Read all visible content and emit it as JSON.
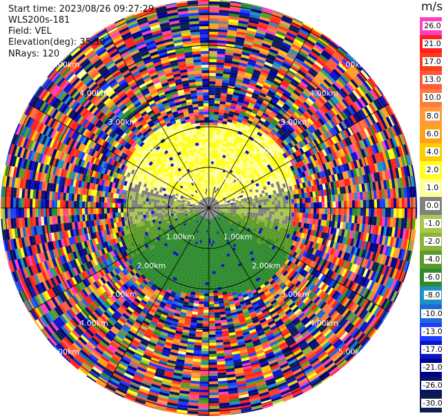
{
  "header": {
    "start_time": "Start time: 2023/08/26 09:27:29",
    "instrument": "WLS200s-181",
    "field": "Field: VEL",
    "elevation": "Elevation(deg): 35.30",
    "nrays": "NRays: 120"
  },
  "colorbar": {
    "unit": "m/s",
    "ticks": [
      "26.0",
      "21.0",
      "17.0",
      "13.0",
      "10.0",
      "8.0",
      "6.0",
      "4.0",
      "2.0",
      "1.0",
      "0.0",
      "-1.0",
      "-2.0",
      "-4.0",
      "-6.0",
      "-8.0",
      "-10.0",
      "-13.0",
      "-17.0",
      "-21.0",
      "-26.0",
      "-30.0"
    ],
    "colors": [
      "#ff3fbf",
      "#ff1f1f",
      "#ff3b1a",
      "#ff5a3c",
      "#ff7a3c",
      "#ff9a3c",
      "#ffa21a",
      "#ffcc00",
      "#ffff1a",
      "#ffff99",
      "#808080",
      "#a8c84a",
      "#8cb43a",
      "#5a9a28",
      "#2d8a2d",
      "#1e90c8",
      "#1e6ad2",
      "#1e3cff",
      "#0a14c8",
      "#00008b",
      "#0a1464",
      "#0a1e50"
    ]
  },
  "chart_data": {
    "type": "heatmap",
    "projection": "polar-ppi",
    "field": "VEL",
    "units": "m/s",
    "rays": 120,
    "range_rings_km": [
      "1.00km",
      "2.00km",
      "3.00km",
      "4.00km",
      "5.00km"
    ],
    "color_range": [
      -30.0,
      26.0
    ],
    "description_of_field": "near-range ring: northern half positive (yellow, ~2 m/s), southern half negative (green, ~-4 to -6 m/s); outer ranges noisy",
    "inner_pattern": {
      "north_value_ms": 2.0,
      "south_value_ms": -5.0,
      "center_value_ms": 0.0
    }
  }
}
